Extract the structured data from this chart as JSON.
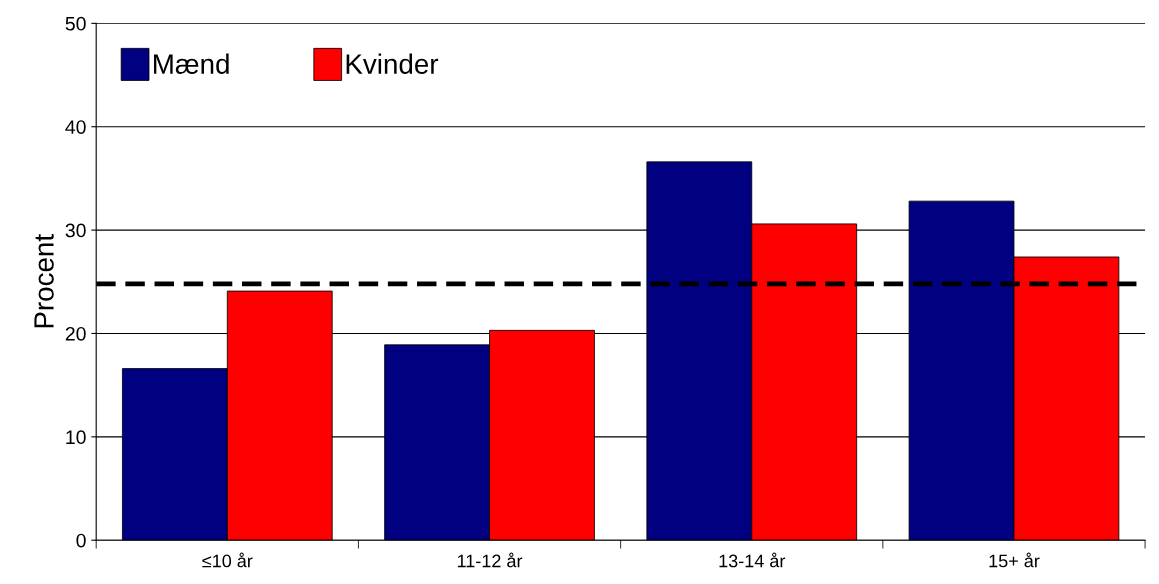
{
  "chart_data": {
    "type": "bar",
    "ylabel": "Procent",
    "categories": [
      "≤10 år",
      "11-12 år",
      "13-14 år",
      "15+ år"
    ],
    "series": [
      {
        "name": "Mænd",
        "color": "#000080",
        "values": [
          16.6,
          18.9,
          36.6,
          32.8
        ]
      },
      {
        "name": "Kvinder",
        "color": "#ff0000",
        "values": [
          24.1,
          20.3,
          30.6,
          27.4
        ]
      }
    ],
    "ylim": [
      0,
      50
    ],
    "yticks": [
      0,
      10,
      20,
      30,
      40,
      50
    ],
    "grid": "y",
    "legend": "top left",
    "ref_lines": [
      {
        "axis": "y",
        "value": 24.8,
        "color": "#000000",
        "line_style": "dashed"
      }
    ]
  }
}
